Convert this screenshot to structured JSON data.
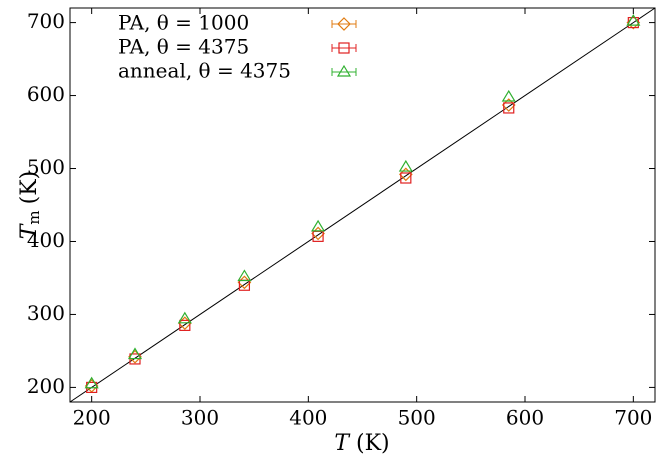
{
  "chart_data": {
    "type": "scatter",
    "x": [
      200,
      240,
      286,
      341,
      409,
      490,
      585,
      700
    ],
    "xlabel": {
      "symbol": "T",
      "unit": "(K)"
    },
    "ylabel": {
      "symbol": "T",
      "subscript": "m",
      "unit": "(K)"
    },
    "xlim": [
      180,
      720
    ],
    "ylim": [
      180,
      720
    ],
    "xticks": [
      200,
      300,
      400,
      500,
      600,
      700
    ],
    "yticks": [
      200,
      300,
      400,
      500,
      600,
      700
    ],
    "legend": "upper left",
    "series": [
      {
        "name": "PA, θ = 1000",
        "color": "#e07b10",
        "marker": "diamond",
        "values": [
          202,
          242,
          288,
          344,
          411,
          492,
          587,
          700
        ]
      },
      {
        "name": "PA, θ = 4375",
        "color": "#e02020",
        "marker": "square",
        "values": [
          200,
          239,
          285,
          340,
          407,
          487,
          583,
          700
        ]
      },
      {
        "name": "anneal, θ = 4375",
        "color": "#30b030",
        "marker": "triangle",
        "values": [
          205,
          245,
          294,
          352,
          420,
          502,
          598,
          702
        ]
      }
    ]
  }
}
